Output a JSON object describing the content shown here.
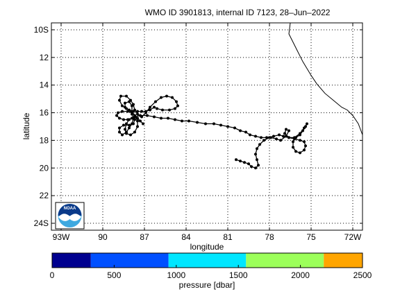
{
  "title": "WMO ID 3901813, internal ID 7123, 28–Jun–2022",
  "map": {
    "xlabel": "longitude",
    "ylabel": "latitude",
    "lon_range": [
      -93.7,
      -71.3
    ],
    "lat_range": [
      -24.5,
      -9.5
    ],
    "lon_ticks": [
      {
        "value": -93,
        "label": "93W"
      },
      {
        "value": -90,
        "label": "90"
      },
      {
        "value": -87,
        "label": "87"
      },
      {
        "value": -84,
        "label": "84"
      },
      {
        "value": -81,
        "label": "81"
      },
      {
        "value": -78,
        "label": "78"
      },
      {
        "value": -75,
        "label": "75"
      },
      {
        "value": -72,
        "label": "72W"
      }
    ],
    "lat_ticks": [
      {
        "value": -10,
        "label": "10S"
      },
      {
        "value": -12,
        "label": "12"
      },
      {
        "value": -14,
        "label": "14"
      },
      {
        "value": -16,
        "label": "16"
      },
      {
        "value": -18,
        "label": "18"
      },
      {
        "value": -20,
        "label": "20"
      },
      {
        "value": -22,
        "label": "22"
      },
      {
        "value": -24,
        "label": "24S"
      }
    ],
    "grid": "dotted",
    "coastline": [
      [
        -76.5,
        -9.5
      ],
      [
        -76.6,
        -10.3
      ],
      [
        -76.3,
        -10.9
      ],
      [
        -76.0,
        -11.5
      ],
      [
        -75.6,
        -12.3
      ],
      [
        -75.3,
        -12.8
      ],
      [
        -75.0,
        -13.3
      ],
      [
        -74.6,
        -13.9
      ],
      [
        -74.0,
        -14.6
      ],
      [
        -73.4,
        -15.1
      ],
      [
        -72.8,
        -15.6
      ],
      [
        -72.4,
        -15.8
      ],
      [
        -72.0,
        -16.2
      ],
      [
        -71.6,
        -16.8
      ],
      [
        -71.3,
        -17.6
      ]
    ],
    "float_track": [
      [
        -80.4,
        -19.4
      ],
      [
        -80.1,
        -19.5
      ],
      [
        -79.8,
        -19.6
      ],
      [
        -79.5,
        -19.7
      ],
      [
        -79.3,
        -19.9
      ],
      [
        -79.0,
        -20.0
      ],
      [
        -78.8,
        -19.8
      ],
      [
        -78.9,
        -19.4
      ],
      [
        -79.0,
        -19.0
      ],
      [
        -78.9,
        -18.6
      ],
      [
        -78.7,
        -18.3
      ],
      [
        -78.4,
        -18.0
      ],
      [
        -78.0,
        -17.8
      ],
      [
        -77.7,
        -17.7
      ],
      [
        -77.3,
        -17.6
      ],
      [
        -77.0,
        -17.7
      ],
      [
        -76.6,
        -17.8
      ],
      [
        -76.2,
        -17.9
      ],
      [
        -75.8,
        -18.0
      ],
      [
        -75.5,
        -18.1
      ],
      [
        -75.4,
        -18.4
      ],
      [
        -75.5,
        -18.7
      ],
      [
        -75.8,
        -18.9
      ],
      [
        -76.1,
        -18.8
      ],
      [
        -76.3,
        -18.5
      ],
      [
        -76.3,
        -18.1
      ],
      [
        -76.1,
        -17.8
      ],
      [
        -75.8,
        -17.6
      ],
      [
        -75.6,
        -17.3
      ],
      [
        -75.4,
        -17.0
      ],
      [
        -75.3,
        -16.8
      ],
      [
        -75.5,
        -17.1
      ],
      [
        -75.8,
        -17.5
      ],
      [
        -76.2,
        -17.8
      ],
      [
        -76.6,
        -17.8
      ],
      [
        -76.9,
        -17.5
      ],
      [
        -76.8,
        -17.2
      ],
      [
        -76.6,
        -17.3
      ],
      [
        -76.8,
        -17.7
      ],
      [
        -77.2,
        -18.0
      ],
      [
        -77.5,
        -17.9
      ],
      [
        -77.9,
        -17.8
      ],
      [
        -78.2,
        -17.8
      ],
      [
        -78.6,
        -17.8
      ],
      [
        -79.0,
        -17.7
      ],
      [
        -79.4,
        -17.6
      ],
      [
        -79.7,
        -17.4
      ],
      [
        -80.1,
        -17.3
      ],
      [
        -80.5,
        -17.1
      ],
      [
        -81.0,
        -17.0
      ],
      [
        -81.5,
        -16.9
      ],
      [
        -82.0,
        -16.8
      ],
      [
        -82.6,
        -16.8
      ],
      [
        -83.2,
        -16.7
      ],
      [
        -83.8,
        -16.6
      ],
      [
        -84.3,
        -16.6
      ],
      [
        -84.8,
        -16.5
      ],
      [
        -85.3,
        -16.4
      ],
      [
        -85.8,
        -16.4
      ],
      [
        -86.3,
        -16.3
      ],
      [
        -86.8,
        -16.2
      ],
      [
        -87.3,
        -16.2
      ],
      [
        -87.7,
        -16.3
      ],
      [
        -88.1,
        -16.5
      ],
      [
        -88.3,
        -16.8
      ],
      [
        -88.4,
        -17.2
      ],
      [
        -88.3,
        -17.5
      ],
      [
        -88.0,
        -17.6
      ],
      [
        -87.7,
        -17.4
      ],
      [
        -87.5,
        -17.0
      ],
      [
        -87.5,
        -16.6
      ],
      [
        -87.7,
        -16.2
      ],
      [
        -88.0,
        -15.9
      ],
      [
        -88.3,
        -15.7
      ],
      [
        -88.6,
        -15.5
      ],
      [
        -88.8,
        -15.1
      ],
      [
        -88.7,
        -14.8
      ],
      [
        -88.3,
        -14.8
      ],
      [
        -88.0,
        -15.1
      ],
      [
        -87.8,
        -15.4
      ],
      [
        -87.7,
        -15.8
      ],
      [
        -87.5,
        -16.1
      ],
      [
        -87.2,
        -16.3
      ],
      [
        -86.9,
        -16.0
      ],
      [
        -86.6,
        -15.6
      ],
      [
        -86.2,
        -15.2
      ],
      [
        -85.8,
        -14.9
      ],
      [
        -85.4,
        -14.8
      ],
      [
        -85.0,
        -14.9
      ],
      [
        -84.7,
        -15.2
      ],
      [
        -84.6,
        -15.5
      ],
      [
        -84.8,
        -15.7
      ],
      [
        -85.2,
        -15.8
      ],
      [
        -85.7,
        -15.8
      ],
      [
        -86.1,
        -15.7
      ],
      [
        -86.3,
        -15.6
      ],
      [
        -86.6,
        -15.8
      ],
      [
        -86.9,
        -15.9
      ],
      [
        -87.2,
        -15.9
      ],
      [
        -87.5,
        -15.9
      ],
      [
        -87.8,
        -15.9
      ],
      [
        -88.2,
        -15.9
      ],
      [
        -88.6,
        -15.9
      ],
      [
        -88.9,
        -16.0
      ],
      [
        -89.0,
        -16.2
      ],
      [
        -88.8,
        -16.4
      ],
      [
        -88.5,
        -16.5
      ],
      [
        -88.2,
        -16.5
      ],
      [
        -87.9,
        -16.4
      ],
      [
        -87.7,
        -16.5
      ],
      [
        -87.8,
        -16.8
      ],
      [
        -88.1,
        -16.9
      ],
      [
        -88.5,
        -16.9
      ],
      [
        -88.8,
        -17.1
      ],
      [
        -88.8,
        -17.4
      ],
      [
        -88.6,
        -17.6
      ],
      [
        -88.3,
        -17.4
      ],
      [
        -88.1,
        -17.1
      ],
      [
        -87.9,
        -16.8
      ],
      [
        -87.8,
        -16.4
      ],
      [
        -87.9,
        -16.1
      ],
      [
        -88.1,
        -15.8
      ],
      [
        -88.4,
        -15.6
      ],
      [
        -88.4,
        -15.3
      ],
      [
        -88.1,
        -15.2
      ],
      [
        -87.9,
        -15.5
      ],
      [
        -87.9,
        -15.9
      ],
      [
        -87.7,
        -16.2
      ],
      [
        -87.5,
        -16.4
      ],
      [
        -87.3,
        -16.6
      ],
      [
        -87.1,
        -16.8
      ]
    ]
  },
  "logo": {
    "text": "NOAA",
    "colors": {
      "top": "#0a3a8a",
      "bottom": "#3fa9e0",
      "bird": "#ffffff"
    }
  },
  "colorbar": {
    "xlabel": "pressure [dbar]",
    "range": [
      0,
      2500
    ],
    "tick_labels": [
      {
        "value": 0,
        "label": "0"
      },
      {
        "value": 500,
        "label": "500"
      },
      {
        "value": 1000,
        "label": "1000"
      },
      {
        "value": 1500,
        "label": "1500"
      },
      {
        "value": 2000,
        "label": "2000"
      },
      {
        "value": 2500,
        "label": "2500"
      }
    ],
    "segments": [
      {
        "from": 0,
        "to": 312,
        "color": "#00008f"
      },
      {
        "from": 312,
        "to": 938,
        "color": "#0050ff"
      },
      {
        "from": 938,
        "to": 1562,
        "color": "#00e6ff"
      },
      {
        "from": 1562,
        "to": 2188,
        "color": "#9cff5a"
      },
      {
        "from": 2188,
        "to": 2500,
        "color": "#ffa500"
      }
    ]
  }
}
